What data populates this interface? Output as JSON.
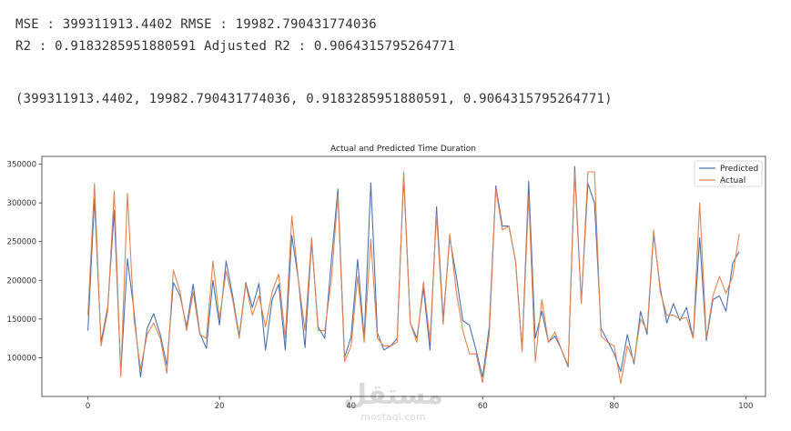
{
  "output": {
    "line1": "MSE : 399311913.4402 RMSE : 19982.790431774036",
    "line2": "R2 : 0.9183285951880591 Adjusted R2 : 0.9064315795264771",
    "line3": "(399311913.4402, 19982.790431774036, 0.9183285951880591, 0.9064315795264771)"
  },
  "watermark": {
    "text": "مستقل",
    "subtext": "mostaql.com"
  },
  "chart_data": {
    "type": "line",
    "title": "Actual and Predicted Time Duration",
    "xlabel": "",
    "ylabel": "",
    "xlim": [
      -7,
      103
    ],
    "ylim": [
      50000,
      360000
    ],
    "xticks": [
      0,
      20,
      40,
      60,
      80,
      100
    ],
    "yticks": [
      100000,
      150000,
      200000,
      250000,
      300000,
      350000
    ],
    "legend": "top-right",
    "grid": false,
    "colors": {
      "predicted": "#4c72b0",
      "actual": "#dd8452"
    },
    "series": [
      {
        "name": "Predicted",
        "color": "#4c72b0",
        "values": [
          135000,
          305000,
          120000,
          165000,
          290000,
          80000,
          228000,
          160000,
          75000,
          138000,
          157000,
          130000,
          90000,
          197000,
          180000,
          140000,
          195000,
          132000,
          112000,
          200000,
          142000,
          225000,
          180000,
          128000,
          197000,
          165000,
          196000,
          110000,
          175000,
          195000,
          110000,
          258000,
          200000,
          113000,
          250000,
          140000,
          125000,
          225000,
          318000,
          100000,
          127000,
          227000,
          125000,
          326000,
          132000,
          110000,
          115000,
          125000,
          335000,
          145000,
          125000,
          190000,
          110000,
          295000,
          150000,
          255000,
          205000,
          148000,
          142000,
          110000,
          75000,
          140000,
          322000,
          270000,
          270000,
          225000,
          110000,
          328000,
          125000,
          160000,
          120000,
          128000,
          110000,
          88000,
          347000,
          172000,
          325000,
          300000,
          138000,
          122000,
          105000,
          82000,
          130000,
          92000,
          160000,
          130000,
          260000,
          190000,
          145000,
          170000,
          148000,
          165000,
          125000,
          255000,
          122000,
          175000,
          180000,
          160000,
          222000,
          237000
        ]
      },
      {
        "name": "Actual",
        "color": "#dd8452",
        "values": [
          155000,
          325000,
          115000,
          160000,
          315000,
          75000,
          312000,
          150000,
          85000,
          130000,
          145000,
          125000,
          80000,
          213000,
          185000,
          135000,
          185000,
          130000,
          125000,
          225000,
          150000,
          212000,
          175000,
          125000,
          195000,
          155000,
          180000,
          140000,
          185000,
          208000,
          125000,
          283000,
          200000,
          135000,
          255000,
          135000,
          135000,
          200000,
          310000,
          95000,
          115000,
          205000,
          120000,
          253000,
          125000,
          115000,
          115000,
          120000,
          340000,
          145000,
          120000,
          198000,
          122000,
          285000,
          143000,
          260000,
          185000,
          135000,
          105000,
          105000,
          68000,
          130000,
          318000,
          265000,
          270000,
          225000,
          108000,
          310000,
          95000,
          175000,
          120000,
          133000,
          110000,
          90000,
          340000,
          170000,
          340000,
          340000,
          128000,
          120000,
          115000,
          67000,
          115000,
          95000,
          150000,
          135000,
          265000,
          185000,
          155000,
          155000,
          150000,
          152000,
          125000,
          300000,
          125000,
          180000,
          205000,
          183000,
          205000,
          260000
        ]
      }
    ]
  }
}
